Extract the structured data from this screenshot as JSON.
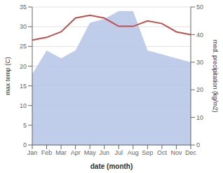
{
  "chart_data": {
    "type": "line",
    "xlabel": "date (month)",
    "ylabel": "max temp (C)",
    "y2label": "med. precipitation (kg/m2)",
    "categories": [
      "Jan",
      "Feb",
      "Mar",
      "Apr",
      "May",
      "Jun",
      "Jul",
      "Aug",
      "Sep",
      "Oct",
      "Nov",
      "Dec"
    ],
    "series": [
      {
        "type": "area",
        "color": "#b8c8e8",
        "values": [
          18,
          24,
          22,
          24,
          31,
          32,
          34,
          34,
          24,
          23,
          22,
          21
        ]
      },
      {
        "type": "line",
        "color": "#c0504d",
        "axis": "y2",
        "values": [
          38,
          39,
          41,
          46,
          47,
          46,
          43,
          43,
          45,
          44,
          41,
          40
        ]
      }
    ],
    "ylim": [
      0,
      35
    ],
    "yticks": [
      0,
      5,
      10,
      15,
      20,
      25,
      30,
      35
    ],
    "y2lim": [
      0,
      50
    ],
    "y2ticks": [
      0,
      10,
      20,
      30,
      40,
      50
    ],
    "grid": true
  }
}
